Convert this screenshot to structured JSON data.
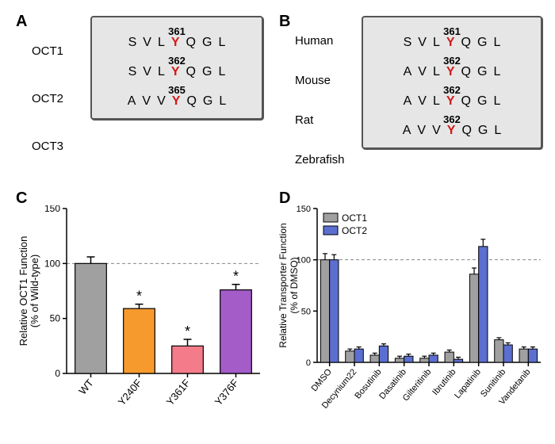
{
  "colors": {
    "box_bg": "#e6e6e6",
    "box_border": "#555555",
    "highlight_Y": "#d11a1a",
    "axis": "#000000",
    "reference_line": "#888888",
    "star": "#000000"
  },
  "panel_labels": {
    "A": "A",
    "B": "B",
    "C": "C",
    "D": "D"
  },
  "panels": {
    "A": {
      "row_labels": [
        "OCT1",
        "OCT2",
        "OCT3"
      ],
      "rows": [
        {
          "pos": "361",
          "seq": [
            "S",
            "V",
            "L",
            "Y",
            "Q",
            "G",
            "L"
          ]
        },
        {
          "pos": "362",
          "seq": [
            "S",
            "V",
            "L",
            "Y",
            "Q",
            "G",
            "L"
          ]
        },
        {
          "pos": "365",
          "seq": [
            "A",
            "V",
            "V",
            "Y",
            "Q",
            "G",
            "L"
          ]
        }
      ],
      "highlight_index": 3
    },
    "B": {
      "row_labels": [
        "Human",
        "Mouse",
        "Rat",
        "Zebrafish"
      ],
      "rows": [
        {
          "pos": "361",
          "seq": [
            "S",
            "V",
            "L",
            "Y",
            "Q",
            "G",
            "L"
          ]
        },
        {
          "pos": "362",
          "seq": [
            "A",
            "V",
            "L",
            "Y",
            "Q",
            "G",
            "L"
          ]
        },
        {
          "pos": "362",
          "seq": [
            "A",
            "V",
            "L",
            "Y",
            "Q",
            "G",
            "L"
          ]
        },
        {
          "pos": "362",
          "seq": [
            "A",
            "V",
            "V",
            "Y",
            "Q",
            "G",
            "L"
          ]
        }
      ],
      "highlight_index": 3
    },
    "C": {
      "type": "bar",
      "ylabel_line1": "Relative OCT1 Function",
      "ylabel_line2": "(% of Wild-type)",
      "reference_y": 100,
      "ymax": 150,
      "ytick_step": 50,
      "bars": [
        {
          "label": "WT",
          "value": 100,
          "err": 6,
          "color": "#a0a0a0",
          "star": false
        },
        {
          "label": "Y240F",
          "value": 59,
          "err": 4,
          "color": "#f79a2e",
          "star": true
        },
        {
          "label": "Y361F",
          "value": 25,
          "err": 6,
          "color": "#f47c8a",
          "star": true
        },
        {
          "label": "Y376F",
          "value": 76,
          "err": 5,
          "color": "#a45cc8",
          "star": true
        }
      ]
    },
    "D": {
      "type": "grouped-bar",
      "ylabel_line1": "Relative Transporter Function",
      "ylabel_line2": "(% of DMSO)",
      "reference_y": 100,
      "ymax": 150,
      "ytick_step": 50,
      "series": [
        {
          "name": "OCT1",
          "color": "#a0a0a0"
        },
        {
          "name": "OCT2",
          "color": "#5b6fd0"
        }
      ],
      "categories": [
        "DMSO",
        "Decynium22",
        "Bosutinib",
        "Dasatinib",
        "Gilteritinib",
        "Ibrutinib",
        "Lapatinib",
        "Sunitinib",
        "Vandetanib"
      ],
      "values": [
        {
          "oct1": 100,
          "oct1_err": 6,
          "oct2": 100,
          "oct2_err": 5
        },
        {
          "oct1": 11,
          "oct1_err": 2,
          "oct2": 13,
          "oct2_err": 2
        },
        {
          "oct1": 7,
          "oct1_err": 2,
          "oct2": 16,
          "oct2_err": 2
        },
        {
          "oct1": 4,
          "oct1_err": 2,
          "oct2": 6,
          "oct2_err": 2
        },
        {
          "oct1": 4,
          "oct1_err": 2,
          "oct2": 7,
          "oct2_err": 2
        },
        {
          "oct1": 10,
          "oct1_err": 2,
          "oct2": 3,
          "oct2_err": 2
        },
        {
          "oct1": 86,
          "oct1_err": 6,
          "oct2": 113,
          "oct2_err": 7
        },
        {
          "oct1": 22,
          "oct1_err": 2,
          "oct2": 17,
          "oct2_err": 2
        },
        {
          "oct1": 13,
          "oct1_err": 2,
          "oct2": 13,
          "oct2_err": 2
        }
      ]
    }
  }
}
